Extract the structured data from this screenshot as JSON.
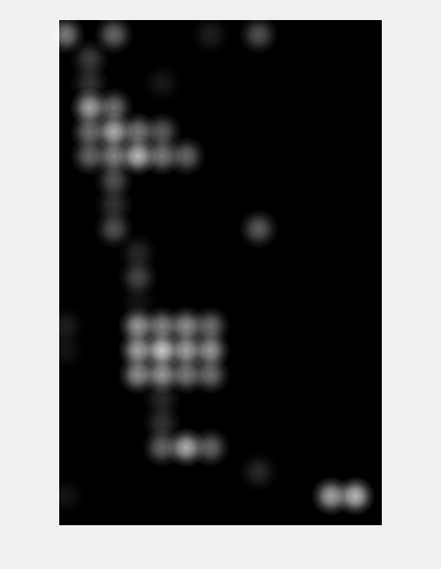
{
  "chart_data": {
    "type": "heatmap",
    "xlim": [
      -0.26,
      13.1
    ],
    "ylim": [
      -0.6,
      20.2
    ],
    "tick_labels": false,
    "grid": false,
    "color": "#ffffff",
    "cells": [
      [
        0,
        0,
        0.6
      ],
      [
        2,
        0,
        0.5
      ],
      [
        6,
        0,
        0.15
      ],
      [
        8,
        0,
        0.4
      ],
      [
        1,
        1,
        0.3
      ],
      [
        1,
        2,
        0.25
      ],
      [
        4,
        2,
        0.12
      ],
      [
        1,
        3,
        0.8
      ],
      [
        2,
        3,
        0.55
      ],
      [
        1,
        4,
        0.55
      ],
      [
        2,
        4,
        0.85
      ],
      [
        3,
        4,
        0.6
      ],
      [
        4,
        4,
        0.45
      ],
      [
        1,
        5,
        0.5
      ],
      [
        2,
        5,
        0.65
      ],
      [
        3,
        5,
        0.9
      ],
      [
        4,
        5,
        0.6
      ],
      [
        5,
        5,
        0.5
      ],
      [
        2,
        6,
        0.4
      ],
      [
        2,
        7,
        0.25
      ],
      [
        2,
        8,
        0.4
      ],
      [
        8,
        8,
        0.45
      ],
      [
        3,
        9,
        0.2
      ],
      [
        3,
        10,
        0.35
      ],
      [
        3,
        11,
        0.1
      ],
      [
        0,
        12,
        0.15
      ],
      [
        3,
        12,
        0.75
      ],
      [
        4,
        12,
        0.65
      ],
      [
        5,
        12,
        0.7
      ],
      [
        6,
        12,
        0.55
      ],
      [
        0,
        13,
        0.1
      ],
      [
        3,
        13,
        0.8
      ],
      [
        4,
        13,
        1.0
      ],
      [
        5,
        13,
        0.8
      ],
      [
        6,
        13,
        0.75
      ],
      [
        3,
        14,
        0.7
      ],
      [
        4,
        14,
        0.75
      ],
      [
        5,
        14,
        0.6
      ],
      [
        6,
        14,
        0.55
      ],
      [
        4,
        15,
        0.2
      ],
      [
        4,
        16,
        0.25
      ],
      [
        4,
        17,
        0.5
      ],
      [
        5,
        17,
        0.85
      ],
      [
        6,
        17,
        0.5
      ],
      [
        8,
        18,
        0.2
      ],
      [
        0,
        19,
        0.1
      ],
      [
        11,
        19,
        0.8
      ],
      [
        12,
        19,
        0.9
      ]
    ]
  }
}
